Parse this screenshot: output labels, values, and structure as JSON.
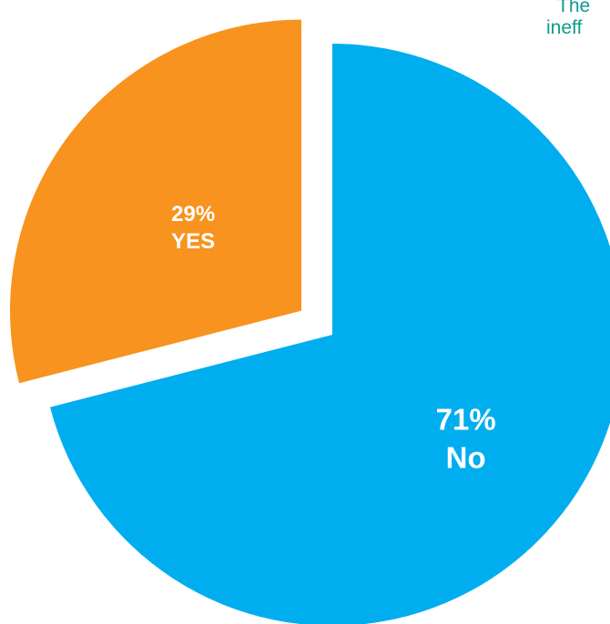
{
  "colors": {
    "no": "#00aeef",
    "yes": "#f7931e",
    "label": "#ffffff",
    "annotation": "#0f9a8f"
  },
  "chart_data": {
    "type": "pie",
    "slices": [
      {
        "category": "No",
        "value": 71,
        "value_label": "71%",
        "exploded": false
      },
      {
        "category": "YES",
        "value": 29,
        "value_label": "29%",
        "exploded": true
      }
    ],
    "start": "12 o'clock",
    "direction": "clockwise",
    "annotation_fragments": [
      "The",
      "ineff"
    ]
  }
}
